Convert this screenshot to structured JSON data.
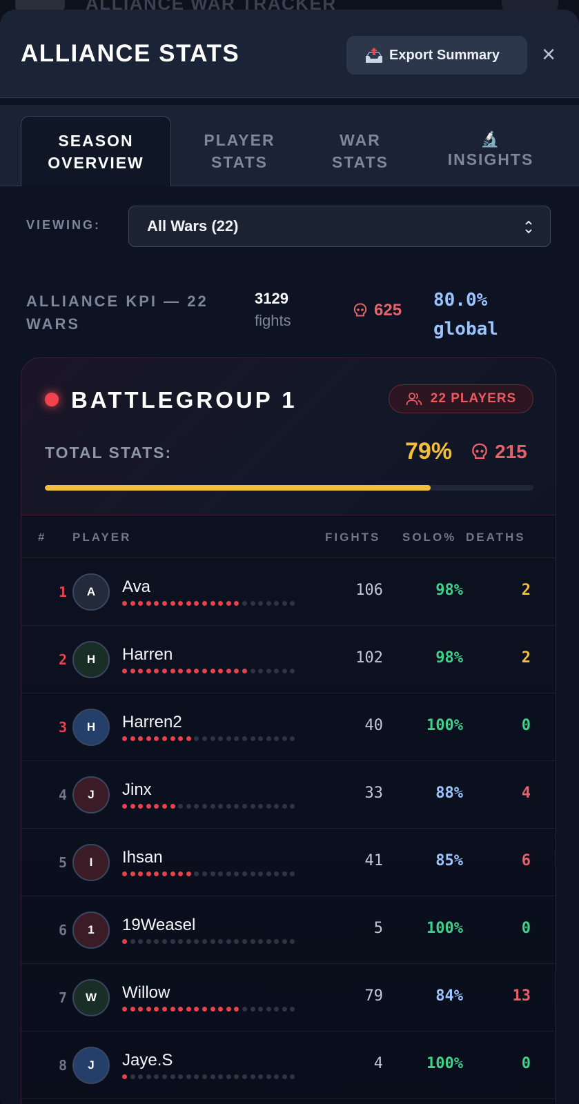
{
  "backdrop": {
    "title": "ALLIANCE WAR TRACKER"
  },
  "modal": {
    "title": "ALLIANCE STATS",
    "export_label": "Export Summary",
    "export_icon": "outbox-tray-icon",
    "close_label": "×"
  },
  "tabs": [
    {
      "line1": "SEASON",
      "line2": "OVERVIEW",
      "icon": "",
      "active": true
    },
    {
      "line1": "PLAYER",
      "line2": "STATS",
      "icon": "",
      "active": false
    },
    {
      "line1": "WAR",
      "line2": "STATS",
      "icon": "",
      "active": false
    },
    {
      "line1": "",
      "line2": "INSIGHTS",
      "icon": "🔬",
      "active": false
    }
  ],
  "viewing": {
    "label": "VIEWING:",
    "selected": "All Wars (22)"
  },
  "kpi": {
    "label": "ALLIANCE KPI — 22 WARS",
    "fights_value": "3129",
    "fights_label": "fights",
    "deaths": "625",
    "global_value": "80.0%",
    "global_label": "global"
  },
  "battlegroup": {
    "title": "BATTLEGROUP 1",
    "players_badge": "22 PLAYERS",
    "total_label": "TOTAL STATS:",
    "total_pct": "79%",
    "total_progress": 0.79,
    "total_deaths": "215",
    "table_headers": {
      "rank": "#",
      "player": "PLAYER",
      "fights": "FIGHTS",
      "solo": "SOLO%",
      "deaths": "DEATHS"
    }
  },
  "colors": {
    "accent_red": "#e9424d",
    "gold": "#f5be3a",
    "green": "#3fd08a",
    "blue": "#9cc4ff",
    "rank_top": "#e9424d",
    "rank_other": "#6e7789"
  },
  "players": [
    {
      "rank": "1",
      "initial": "A",
      "name": "Ava",
      "fights": "106",
      "solo": "98%",
      "deaths": "2",
      "dots_on": 15,
      "dots_total": 22,
      "avatar_bg": "#232b3a",
      "solo_color": "#3fd08a",
      "deaths_color": "#f5be3a",
      "rank_color": "#e9424d"
    },
    {
      "rank": "2",
      "initial": "H",
      "name": "Harren",
      "fights": "102",
      "solo": "98%",
      "deaths": "2",
      "dots_on": 16,
      "dots_total": 22,
      "avatar_bg": "#1a2e28",
      "solo_color": "#3fd08a",
      "deaths_color": "#f5be3a",
      "rank_color": "#e9424d"
    },
    {
      "rank": "3",
      "initial": "H",
      "name": "Harren2",
      "fights": "40",
      "solo": "100%",
      "deaths": "0",
      "dots_on": 9,
      "dots_total": 22,
      "avatar_bg": "#24406a",
      "solo_color": "#3fd08a",
      "deaths_color": "#3fd08a",
      "rank_color": "#e9424d"
    },
    {
      "rank": "4",
      "initial": "J",
      "name": "Jinx",
      "fights": "33",
      "solo": "88%",
      "deaths": "4",
      "dots_on": 7,
      "dots_total": 22,
      "avatar_bg": "#3b1c26",
      "solo_color": "#9cc4ff",
      "deaths_color": "#e86068",
      "rank_color": "#6e7789"
    },
    {
      "rank": "5",
      "initial": "I",
      "name": "Ihsan",
      "fights": "41",
      "solo": "85%",
      "deaths": "6",
      "dots_on": 9,
      "dots_total": 22,
      "avatar_bg": "#3b1c26",
      "solo_color": "#9cc4ff",
      "deaths_color": "#e86068",
      "rank_color": "#6e7789"
    },
    {
      "rank": "6",
      "initial": "1",
      "name": "19Weasel",
      "fights": "5",
      "solo": "100%",
      "deaths": "0",
      "dots_on": 1,
      "dots_total": 22,
      "avatar_bg": "#3b1c26",
      "solo_color": "#3fd08a",
      "deaths_color": "#3fd08a",
      "rank_color": "#6e7789"
    },
    {
      "rank": "7",
      "initial": "W",
      "name": "Willow",
      "fights": "79",
      "solo": "84%",
      "deaths": "13",
      "dots_on": 15,
      "dots_total": 22,
      "avatar_bg": "#1a2e28",
      "solo_color": "#9cc4ff",
      "deaths_color": "#e86068",
      "rank_color": "#6e7789"
    },
    {
      "rank": "8",
      "initial": "J",
      "name": "Jaye.S",
      "fights": "4",
      "solo": "100%",
      "deaths": "0",
      "dots_on": 1,
      "dots_total": 22,
      "avatar_bg": "#24406a",
      "solo_color": "#3fd08a",
      "deaths_color": "#3fd08a",
      "rank_color": "#6e7789"
    }
  ]
}
